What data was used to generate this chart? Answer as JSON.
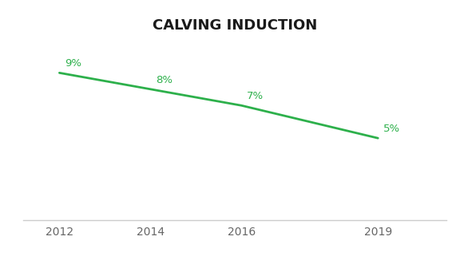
{
  "title": "CALVING INDUCTION",
  "x": [
    2012,
    2014,
    2016,
    2019
  ],
  "y": [
    9,
    8,
    7,
    5
  ],
  "labels": [
    "9%",
    "8%",
    "7%",
    "5%"
  ],
  "line_color": "#2db04b",
  "background_color": "#ffffff",
  "title_fontsize": 13,
  "label_fontsize": 9.5,
  "tick_fontsize": 10,
  "ylim": [
    0,
    11
  ],
  "xlim": [
    2011.2,
    2020.5
  ]
}
